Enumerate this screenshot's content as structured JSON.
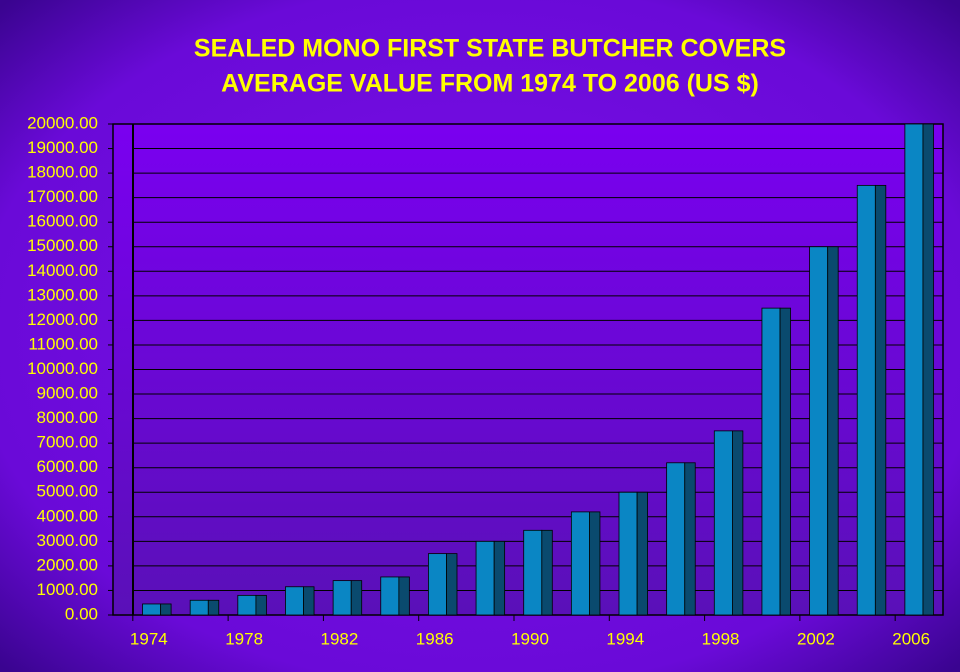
{
  "chart_data": {
    "type": "bar",
    "title": "SEALED MONO FIRST STATE BUTCHER COVERS",
    "subtitle": "AVERAGE VALUE FROM 1974 TO 2006  (US $)",
    "categories": [
      "1974",
      null,
      "1978",
      null,
      "1982",
      null,
      "1986",
      null,
      "1990",
      null,
      "1994",
      null,
      "1998",
      null,
      "2002",
      null,
      "2006"
    ],
    "values": [
      450,
      600,
      800,
      1150,
      1400,
      1550,
      2500,
      3000,
      3450,
      4200,
      5000,
      6200,
      7500,
      12500,
      15000,
      17500,
      20000
    ],
    "color": "#0a86c4",
    "ylim": [
      0,
      20000
    ],
    "yticks": [
      {
        "value": 0,
        "label": "0.00"
      },
      {
        "value": 1000,
        "label": "1000.00"
      },
      {
        "value": 2000,
        "label": "2000.00"
      },
      {
        "value": 3000,
        "label": "3000.00"
      },
      {
        "value": 4000,
        "label": "4000.00"
      },
      {
        "value": 5000,
        "label": "5000.00"
      },
      {
        "value": 6000,
        "label": "6000.00"
      },
      {
        "value": 7000,
        "label": "7000.00"
      },
      {
        "value": 8000,
        "label": "8000.00"
      },
      {
        "value": 9000,
        "label": "9000.00"
      },
      {
        "value": 10000,
        "label": "10000.00"
      },
      {
        "value": 11000,
        "label": "11000.00"
      },
      {
        "value": 12000,
        "label": "12000.00"
      },
      {
        "value": 13000,
        "label": "13000.00"
      },
      {
        "value": 14000,
        "label": "14000.00"
      },
      {
        "value": 15000,
        "label": "15000.00"
      },
      {
        "value": 16000,
        "label": "16000.00"
      },
      {
        "value": 17000,
        "label": "17000.00"
      },
      {
        "value": 18000,
        "label": "18000.00"
      },
      {
        "value": 19000,
        "label": "19000.00"
      },
      {
        "value": 20000,
        "label": "20000.00"
      }
    ],
    "grid": true
  }
}
